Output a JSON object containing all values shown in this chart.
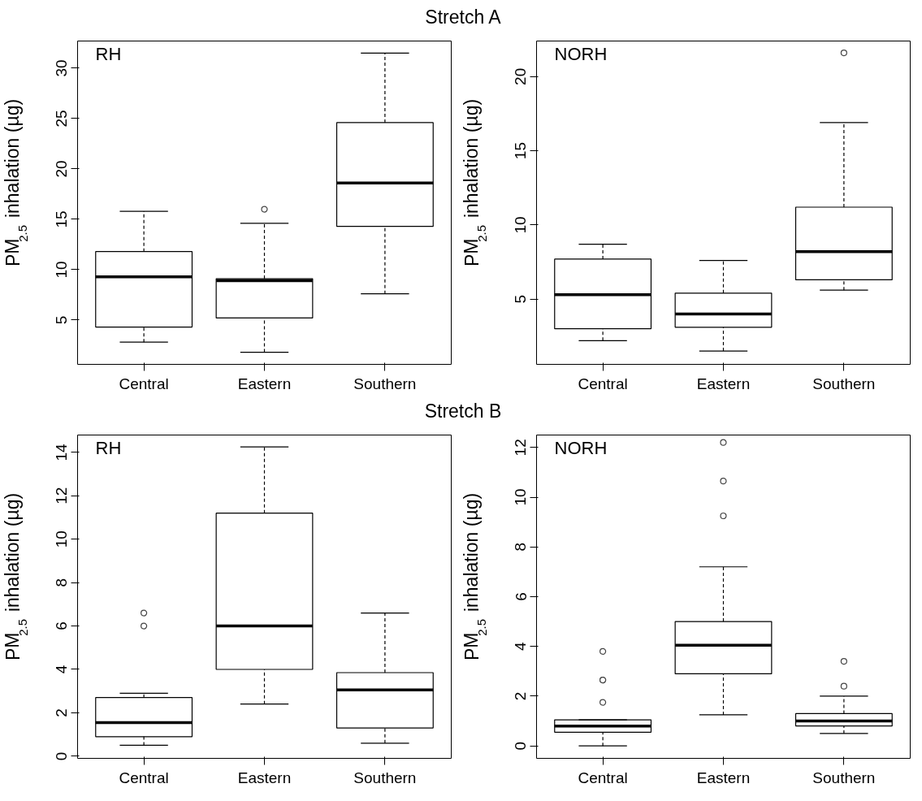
{
  "chart_data": [
    {
      "type": "box",
      "title": "Stretch A",
      "ylabel": "PM$_{2.5}$ inhalation (µg)",
      "annotations": [
        "RH"
      ],
      "categories": [
        "Central",
        "Eastern",
        "Southern"
      ],
      "ylim": [
        0.6,
        32.7
      ],
      "yticks": [
        5,
        10,
        15,
        20,
        25,
        30
      ],
      "boxes": [
        {
          "low": 2.8,
          "q1": 4.3,
          "median": 9.3,
          "q3": 11.8,
          "high": 15.8
        },
        {
          "low": 1.8,
          "q1": 5.2,
          "median": 8.9,
          "q3": 9.1,
          "high": 14.6,
          "outliers": [
            16.0
          ]
        },
        {
          "low": 7.6,
          "q1": 14.3,
          "median": 18.6,
          "q3": 24.6,
          "high": 31.5
        }
      ]
    },
    {
      "type": "box",
      "ylabel": "PM$_{2.5}$ inhalation (µg)",
      "annotations": [
        "NORH"
      ],
      "categories": [
        "Central",
        "Eastern",
        "Southern"
      ],
      "ylim": [
        0.6,
        22.4
      ],
      "yticks": [
        5,
        10,
        15,
        20
      ],
      "boxes": [
        {
          "low": 2.2,
          "q1": 3.0,
          "median": 5.3,
          "q3": 7.7,
          "high": 8.7
        },
        {
          "low": 1.5,
          "q1": 3.1,
          "median": 4.0,
          "q3": 5.4,
          "high": 7.6
        },
        {
          "low": 5.6,
          "q1": 6.3,
          "median": 8.2,
          "q3": 11.2,
          "high": 16.9,
          "outliers": [
            21.6
          ]
        }
      ]
    },
    {
      "type": "box",
      "title": "Stretch B",
      "ylabel": "PM$_{2.5}$ inhalation (µg)",
      "annotations": [
        "RH"
      ],
      "categories": [
        "Central",
        "Eastern",
        "Southern"
      ],
      "ylim": [
        -0.1,
        14.8
      ],
      "yticks": [
        0,
        2,
        4,
        6,
        8,
        10,
        12,
        14
      ],
      "boxes": [
        {
          "low": 0.5,
          "q1": 0.9,
          "median": 1.55,
          "q3": 2.7,
          "high": 2.9,
          "outliers": [
            6.0,
            6.6
          ]
        },
        {
          "low": 2.4,
          "q1": 4.0,
          "median": 6.0,
          "q3": 11.2,
          "high": 14.25
        },
        {
          "low": 0.6,
          "q1": 1.3,
          "median": 3.05,
          "q3": 3.85,
          "high": 6.6
        }
      ]
    },
    {
      "type": "box",
      "ylabel": "PM$_{2.5}$ inhalation (µg)",
      "annotations": [
        "NORH"
      ],
      "categories": [
        "Central",
        "Eastern",
        "Southern"
      ],
      "ylim": [
        -0.5,
        12.5
      ],
      "yticks": [
        0,
        2,
        4,
        6,
        8,
        10,
        12
      ],
      "boxes": [
        {
          "low": 0.0,
          "q1": 0.55,
          "median": 0.8,
          "q3": 1.05,
          "high": 1.05,
          "outliers": [
            1.75,
            2.65,
            2.65,
            3.8
          ]
        },
        {
          "low": 1.25,
          "q1": 2.9,
          "median": 4.05,
          "q3": 5.0,
          "high": 7.2,
          "outliers": [
            9.25,
            10.65,
            12.2
          ]
        },
        {
          "low": 0.5,
          "q1": 0.8,
          "median": 1.0,
          "q3": 1.3,
          "high": 2.0,
          "outliers": [
            2.4,
            3.4
          ]
        }
      ]
    }
  ]
}
